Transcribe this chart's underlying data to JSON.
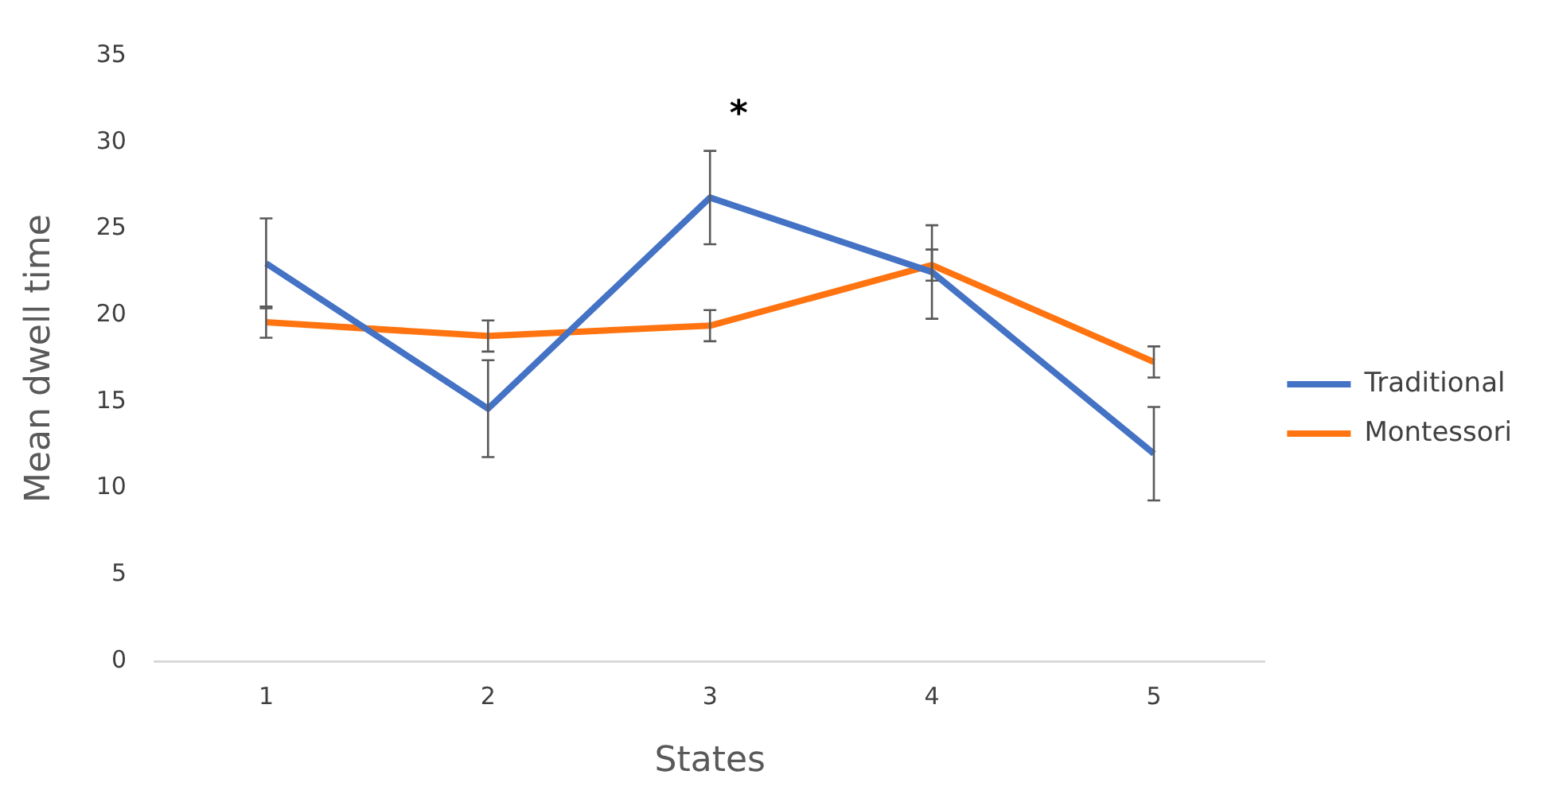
{
  "chart_data": {
    "type": "line",
    "xlabel": "States",
    "ylabel": "Mean dwell time",
    "categories": [
      "1",
      "2",
      "3",
      "4",
      "5"
    ],
    "series": [
      {
        "name": "Traditional",
        "color": "#4472c4",
        "values": [
          23.0,
          14.6,
          26.8,
          22.5,
          12.0
        ],
        "errors": [
          2.6,
          2.8,
          2.7,
          2.7,
          2.7
        ]
      },
      {
        "name": "Montessori",
        "color": "#ff7410",
        "values": [
          19.6,
          18.8,
          19.4,
          22.9,
          17.3
        ],
        "errors": [
          0.9,
          0.9,
          0.9,
          0.9,
          0.9
        ]
      }
    ],
    "ylim": [
      0,
      35
    ],
    "yticks": [
      0,
      5,
      10,
      15,
      20,
      25,
      30,
      35
    ],
    "annotations": [
      "*"
    ],
    "grid": false,
    "legend": "right",
    "marker": "none",
    "line_style": "solid"
  }
}
